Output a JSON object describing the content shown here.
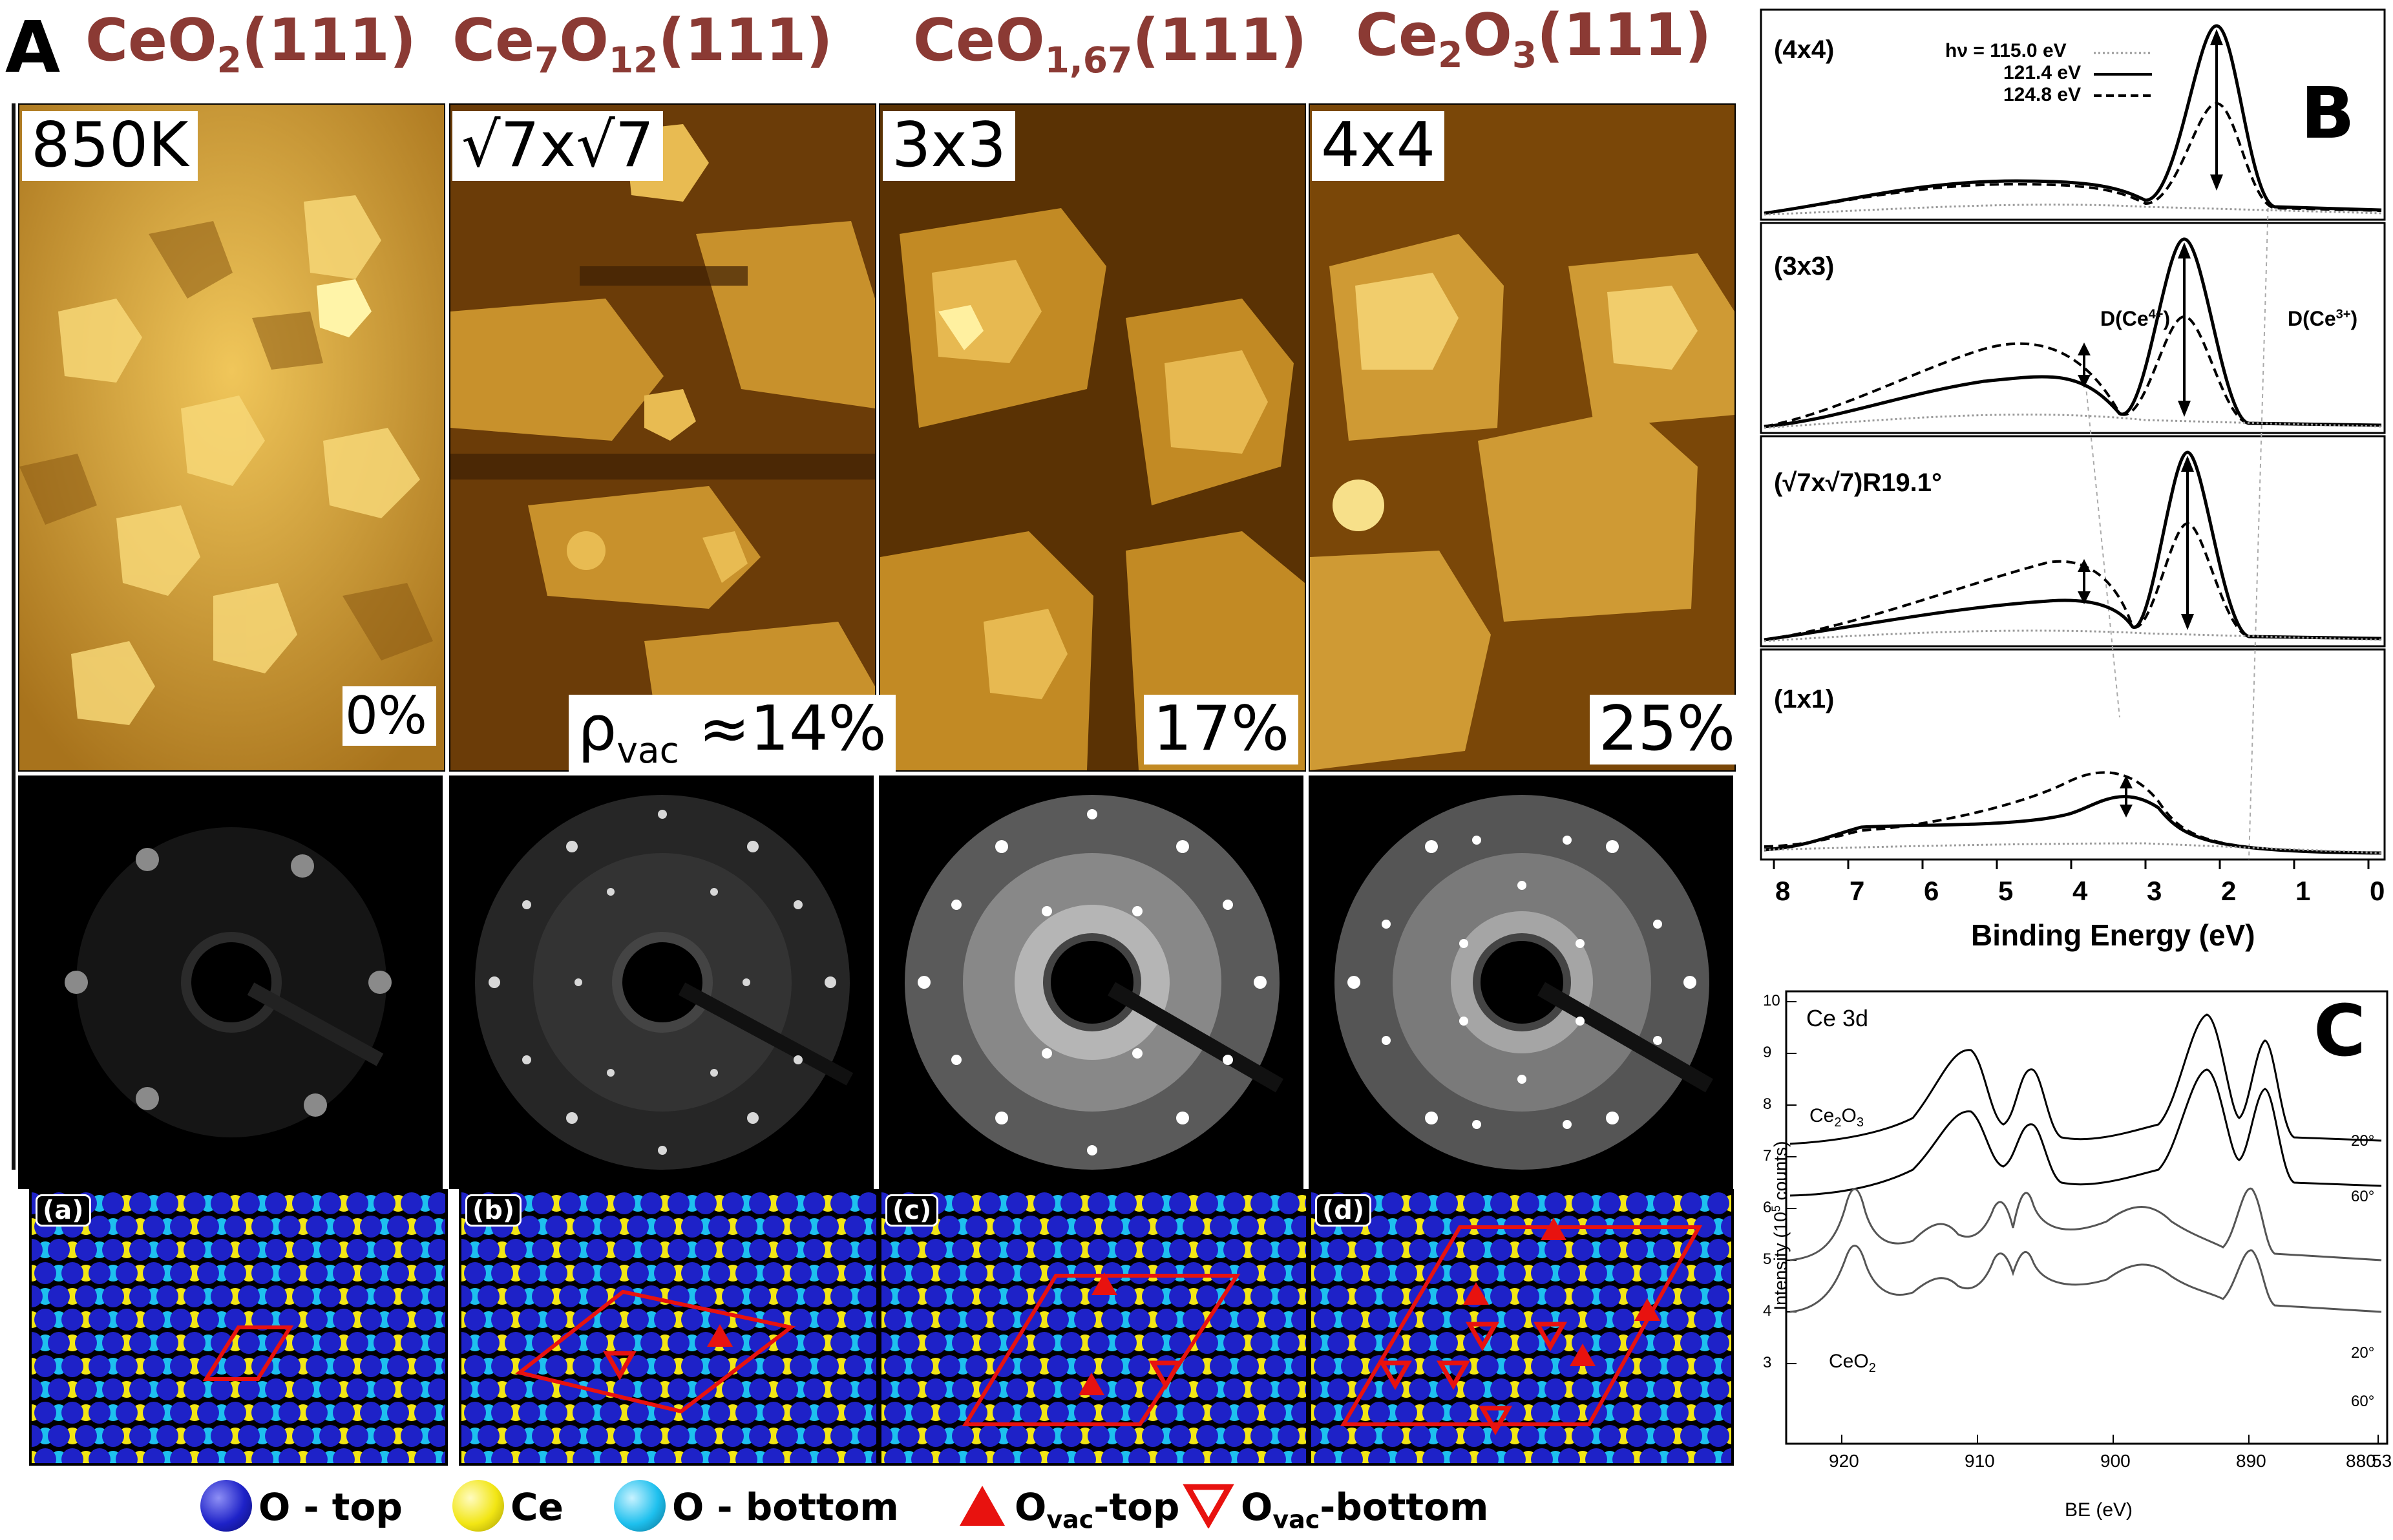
{
  "panel_letters": {
    "a": "A",
    "b": "B",
    "c": "C"
  },
  "columns": [
    {
      "formula_main": "CeO",
      "formula_sub1": "2",
      "formula_rest": "(111)",
      "stm_label": "850K",
      "stm_pct": "0%",
      "model_tag": "(a)"
    },
    {
      "formula_main": "Ce",
      "formula_sub1": "7",
      "formula_mid": "O",
      "formula_sub2": "12",
      "formula_rest": "(111)",
      "stm_label": "√7x√7",
      "stm_pct_prefix": "ρ",
      "stm_pct_sub": "vac",
      "stm_pct": " ≈14%",
      "model_tag": "(b)"
    },
    {
      "formula_main": "CeO",
      "formula_sub1": "1,67",
      "formula_rest": "(111)",
      "stm_label": "3x3",
      "stm_pct": "17%",
      "model_tag": "(c)"
    },
    {
      "formula_main": "Ce",
      "formula_sub1": "2",
      "formula_mid": "O",
      "formula_sub2": "3",
      "formula_rest": "(111)",
      "stm_label": "4x4",
      "stm_pct": "25%",
      "model_tag": "(d)"
    }
  ],
  "legend": {
    "o_top": "O - top",
    "ce": "Ce",
    "o_bottom": "O - bottom",
    "ovac_top_main": "O",
    "ovac_top_sub": "vac",
    "ovac_top_rest": "-top",
    "ovac_bottom_main": "O",
    "ovac_bottom_sub": "vac",
    "ovac_bottom_rest": "-bottom"
  },
  "colors": {
    "o_top": "#1e22c8",
    "ce": "#f2e614",
    "o_bottom": "#1ec0ee",
    "vacancy": "#e8120f",
    "title": "#8b3a34"
  },
  "panel_b": {
    "subpanels": [
      {
        "label": "(4x4)",
        "ce4_label": "",
        "ce3_label": ""
      },
      {
        "label": "(3x3)",
        "ce4_label": "D(Ce",
        "ce4_sup": "4+",
        "ce4_close": ")",
        "ce3_label": "D(Ce",
        "ce3_sup": "3+",
        "ce3_close": ")"
      },
      {
        "label": "(√7x√7)R19.1°",
        "ce4_label": "",
        "ce3_label": ""
      },
      {
        "label": "(1x1)",
        "ce4_label": "",
        "ce3_label": ""
      }
    ],
    "legend": [
      {
        "label": "hν = 115.0 eV",
        "style": "dotted"
      },
      {
        "label": "121.4 eV",
        "style": "solid"
      },
      {
        "label": "124.8 eV",
        "style": "dashed"
      }
    ],
    "xlabel": "Binding Energy (eV)",
    "xticks": [
      "8",
      "7",
      "6",
      "5",
      "4",
      "3",
      "2",
      "1",
      "0"
    ],
    "xlim": [
      8,
      0
    ]
  },
  "panel_c": {
    "title": "Ce 3d",
    "ylabel": "Intensity (10",
    "ylabel_sup": "5",
    "ylabel_rest": " counts)",
    "xlabel": "BE (eV)",
    "yticks": [
      "10",
      "9",
      "8",
      "7",
      "6",
      "5",
      "4",
      "3"
    ],
    "xticks": [
      "920",
      "910",
      "900",
      "890",
      "880"
    ],
    "xtick_partial": "53",
    "curve_labels": {
      "ce2o3_main": "Ce",
      "ce2o3_sub1": "2",
      "ce2o3_mid": "O",
      "ce2o3_sub2": "3",
      "ceo2_main": "CeO",
      "ceo2_sub": "2"
    },
    "angle_labels": [
      "20°",
      "60°",
      "20°",
      "60°"
    ]
  }
}
